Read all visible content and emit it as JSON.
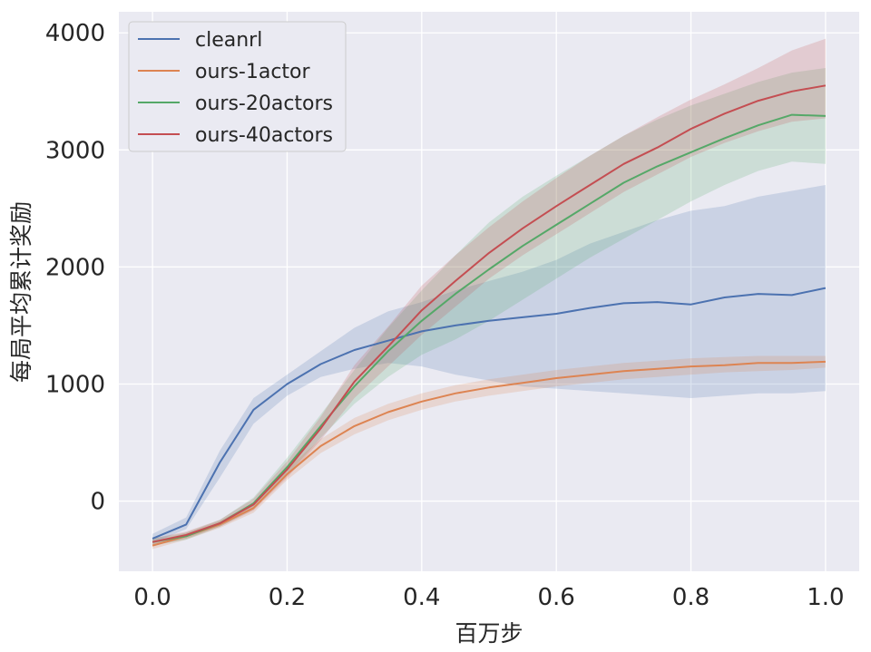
{
  "chart_data": {
    "type": "line",
    "title": "",
    "xlabel": "百万步",
    "ylabel": "每局平均累计奖励",
    "xlim": [
      -0.05,
      1.05
    ],
    "ylim": [
      -600,
      4180
    ],
    "xticks": [
      0.0,
      0.2,
      0.4,
      0.6,
      0.8,
      1.0
    ],
    "xtick_labels": [
      "0.0",
      "0.2",
      "0.4",
      "0.6",
      "0.8",
      "1.0"
    ],
    "yticks": [
      0,
      1000,
      2000,
      3000,
      4000
    ],
    "ytick_labels": [
      "0",
      "1000",
      "2000",
      "3000",
      "4000"
    ],
    "grid": true,
    "legend_position": "top-left",
    "x": [
      0.0,
      0.05,
      0.1,
      0.15,
      0.2,
      0.25,
      0.3,
      0.35,
      0.4,
      0.45,
      0.5,
      0.55,
      0.6,
      0.65,
      0.7,
      0.75,
      0.8,
      0.85,
      0.9,
      0.95,
      1.0
    ],
    "series": [
      {
        "name": "cleanrl",
        "color": "#4c72b0",
        "values": [
          -320,
          -200,
          330,
          780,
          1000,
          1170,
          1290,
          1370,
          1450,
          1500,
          1540,
          1570,
          1600,
          1650,
          1690,
          1700,
          1680,
          1740,
          1770,
          1760,
          1820
        ],
        "lower": [
          -360,
          -240,
          200,
          660,
          900,
          1060,
          1130,
          1180,
          1150,
          1080,
          1030,
          980,
          960,
          940,
          920,
          900,
          880,
          900,
          920,
          920,
          940
        ],
        "upper": [
          -280,
          -140,
          430,
          880,
          1080,
          1280,
          1480,
          1620,
          1700,
          1800,
          1880,
          1960,
          2060,
          2200,
          2300,
          2400,
          2480,
          2520,
          2600,
          2650,
          2700
        ]
      },
      {
        "name": "ours-1actor",
        "color": "#dd8452",
        "values": [
          -380,
          -300,
          -200,
          -60,
          230,
          470,
          640,
          760,
          850,
          920,
          970,
          1010,
          1050,
          1080,
          1110,
          1130,
          1150,
          1160,
          1180,
          1180,
          1190
        ],
        "lower": [
          -410,
          -330,
          -230,
          -100,
          180,
          410,
          570,
          690,
          780,
          850,
          900,
          940,
          980,
          1010,
          1040,
          1060,
          1080,
          1100,
          1110,
          1120,
          1140
        ],
        "upper": [
          -350,
          -270,
          -170,
          -20,
          280,
          530,
          710,
          830,
          920,
          990,
          1040,
          1080,
          1120,
          1150,
          1180,
          1200,
          1220,
          1230,
          1240,
          1240,
          1240
        ]
      },
      {
        "name": "ours-20actors",
        "color": "#55a868",
        "values": [
          -350,
          -300,
          -190,
          -20,
          290,
          640,
          980,
          1280,
          1540,
          1770,
          1980,
          2180,
          2360,
          2540,
          2720,
          2860,
          2980,
          3100,
          3210,
          3300,
          3290
        ],
        "lower": [
          -380,
          -330,
          -220,
          -70,
          220,
          540,
          830,
          1060,
          1250,
          1380,
          1540,
          1720,
          1900,
          2080,
          2240,
          2400,
          2560,
          2700,
          2820,
          2900,
          2880
        ],
        "upper": [
          -320,
          -270,
          -160,
          30,
          370,
          740,
          1120,
          1480,
          1800,
          2100,
          2380,
          2600,
          2780,
          2950,
          3120,
          3260,
          3380,
          3480,
          3580,
          3660,
          3700
        ]
      },
      {
        "name": "ours-40actors",
        "color": "#c44e52",
        "values": [
          -350,
          -290,
          -190,
          -30,
          270,
          620,
          1020,
          1320,
          1630,
          1880,
          2120,
          2330,
          2520,
          2700,
          2880,
          3020,
          3180,
          3310,
          3420,
          3500,
          3550
        ],
        "lower": [
          -380,
          -320,
          -220,
          -80,
          200,
          520,
          880,
          1150,
          1420,
          1660,
          1900,
          2100,
          2280,
          2460,
          2640,
          2790,
          2940,
          3060,
          3160,
          3240,
          3270
        ],
        "upper": [
          -320,
          -260,
          -160,
          20,
          340,
          720,
          1160,
          1490,
          1840,
          2100,
          2340,
          2560,
          2760,
          2950,
          3120,
          3280,
          3430,
          3560,
          3700,
          3850,
          3950
        ]
      }
    ]
  }
}
